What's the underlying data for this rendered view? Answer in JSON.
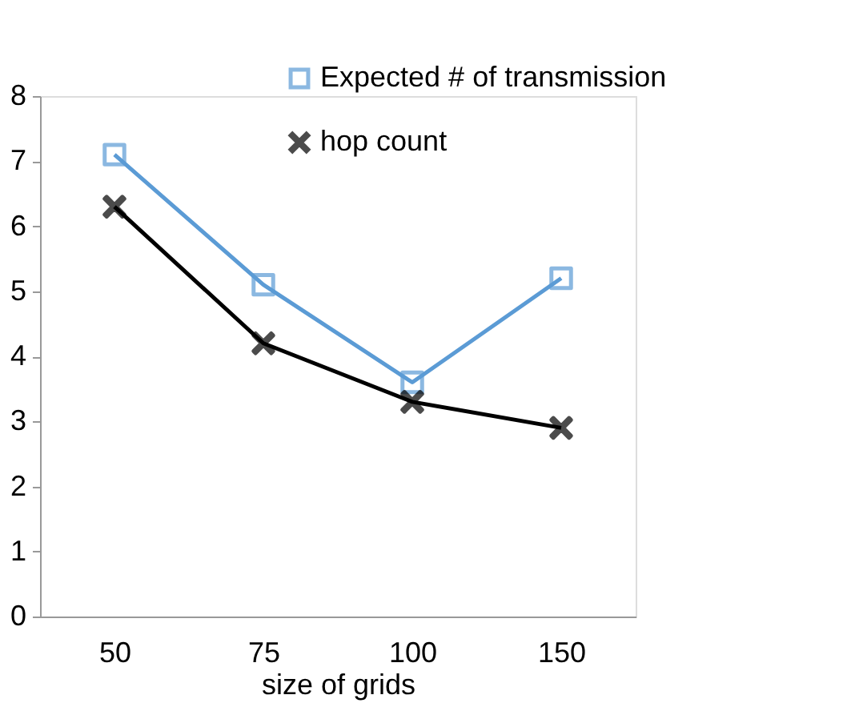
{
  "chart_data": {
    "type": "line",
    "xlabel": "size of grids",
    "categories": [
      "50",
      "75",
      "100",
      "150"
    ],
    "series": [
      {
        "name": "Expected # of transmission",
        "color": "#5b9bd5",
        "marker": "square",
        "values": [
          7.1,
          5.1,
          3.6,
          5.2
        ]
      },
      {
        "name": "hop count",
        "color": "#000000",
        "marker": "cross",
        "values": [
          6.3,
          4.2,
          3.3,
          2.9
        ]
      }
    ],
    "ylim": [
      0,
      8
    ],
    "yticks": [
      0,
      1,
      2,
      3,
      4,
      5,
      6,
      7,
      8
    ],
    "grid": false,
    "legend": "top right",
    "line_style": "solid"
  }
}
